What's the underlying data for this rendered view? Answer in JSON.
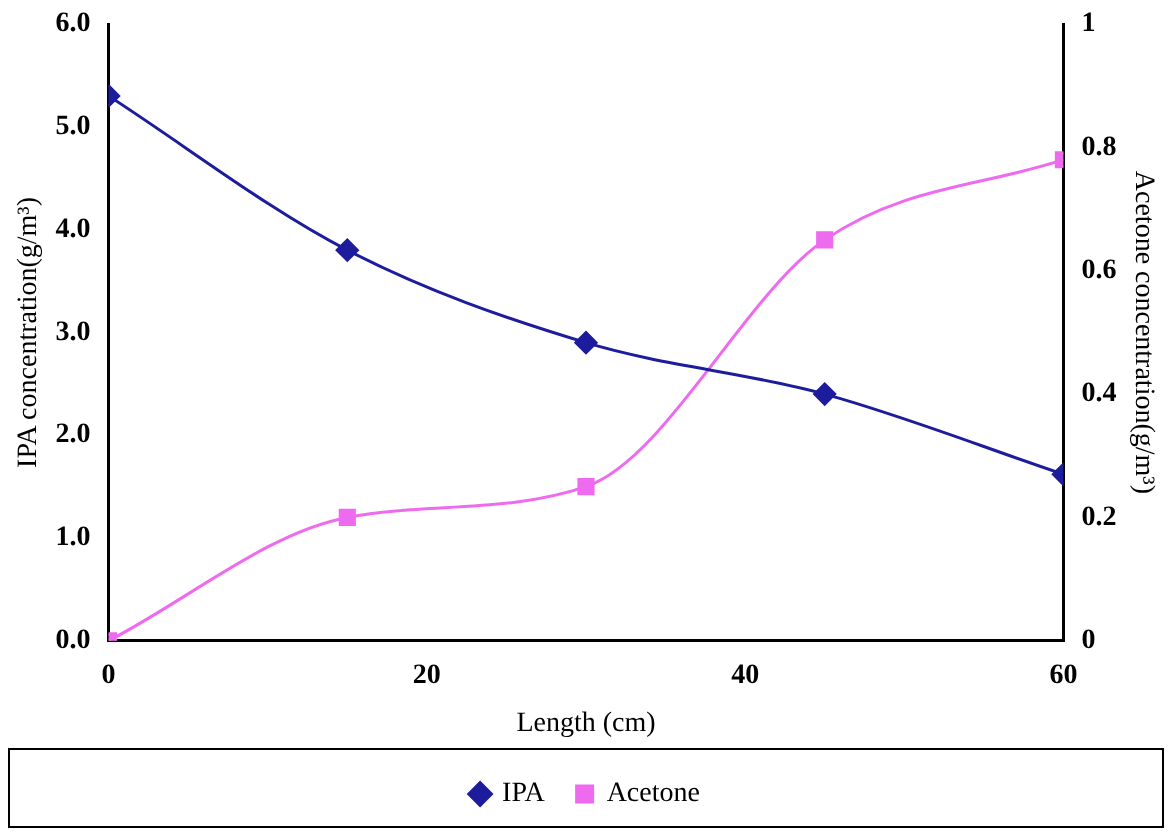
{
  "chart_data": {
    "type": "line",
    "xlabel": "Length (cm)",
    "ylabel": "IPA concentration(g/m³)",
    "y2label": "Acetone concentration(g/m³)",
    "x": [
      0,
      15,
      30,
      45,
      60
    ],
    "series": [
      {
        "name": "IPA",
        "color": "#1c1c9c",
        "marker": "diamond",
        "values": [
          5.3,
          3.8,
          2.9,
          2.4,
          1.62
        ]
      },
      {
        "name": "Acetone",
        "color": "#ee6aee",
        "marker": "square",
        "axis": "y2",
        "values": [
          0,
          0.2,
          0.25,
          0.65,
          0.78
        ]
      }
    ],
    "xlim": [
      0,
      60
    ],
    "xticks": [
      0,
      20,
      40,
      60
    ],
    "ylim": [
      0,
      6
    ],
    "yticks": [
      {
        "value": 0,
        "label": "0.0"
      },
      {
        "value": 1,
        "label": "1.0"
      },
      {
        "value": 2,
        "label": "2.0"
      },
      {
        "value": 3,
        "label": "3.0"
      },
      {
        "value": 4,
        "label": "4.0"
      },
      {
        "value": 5,
        "label": "5.0"
      },
      {
        "value": 6,
        "label": "6.0"
      }
    ],
    "y2lim": [
      0,
      1
    ],
    "y2ticks": [
      0,
      0.2,
      0.4,
      0.6,
      0.8,
      1
    ],
    "grid": false,
    "legend": "bottom",
    "line_style": "solid"
  }
}
